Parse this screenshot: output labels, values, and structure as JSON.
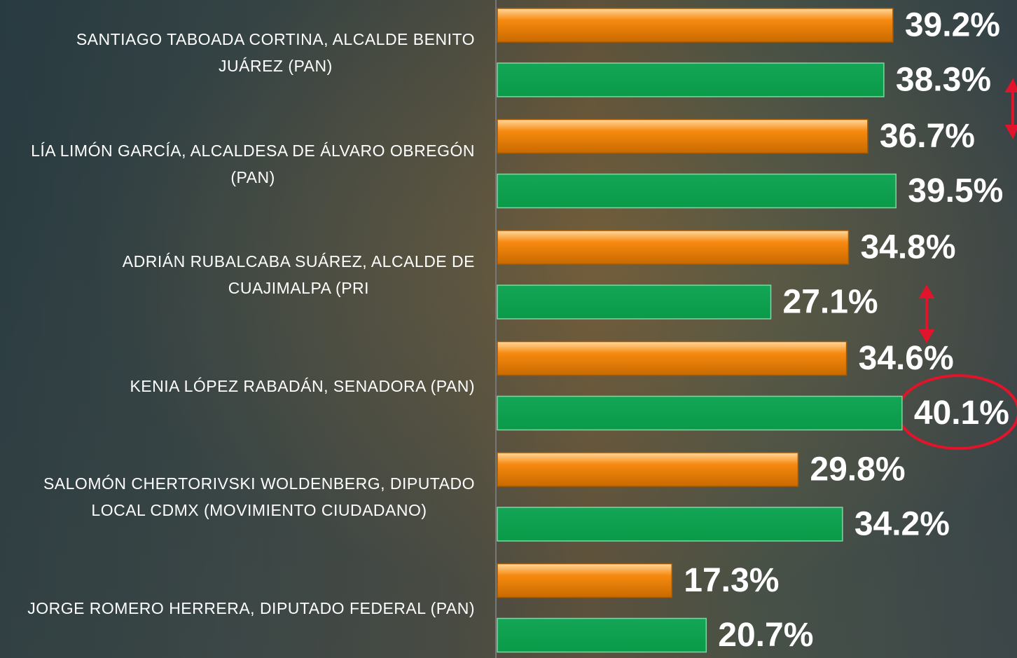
{
  "chart_data": {
    "type": "bar",
    "orientation": "horizontal",
    "categories": [
      "SANTIAGO TABOADA CORTINA, ALCALDE BENITO\nJUÁREZ (PAN)",
      "LÍA LIMÓN GARCÍA, ALCALDESA DE ÁLVARO OBREGÓN\n(PAN)",
      "ADRIÁN RUBALCABA SUÁREZ, ALCALDE DE\nCUAJIMALPA (PRI",
      "KENIA LÓPEZ RABADÁN, SENADORA (PAN)",
      "SALOMÓN CHERTORIVSKI WOLDENBERG, DIPUTADO\nLOCAL CDMX (MOVIMIENTO CIUDADANO)",
      "JORGE ROMERO HERRERA, DIPUTADO FEDERAL (PAN)"
    ],
    "series": [
      {
        "color": "#f7890f",
        "values": [
          39.2,
          36.7,
          34.8,
          34.6,
          29.8,
          17.3
        ],
        "value_labels": [
          "39.2%",
          "36.7%",
          "34.8%",
          "34.6%",
          "29.8%",
          "17.3%"
        ]
      },
      {
        "color": "#0aa04c",
        "values": [
          38.3,
          39.5,
          27.1,
          40.1,
          34.2,
          20.7
        ],
        "value_labels": [
          "38.3%",
          "39.5%",
          "27.1%",
          "40.1%",
          "34.2%",
          "20.7%"
        ]
      }
    ]
  }
}
